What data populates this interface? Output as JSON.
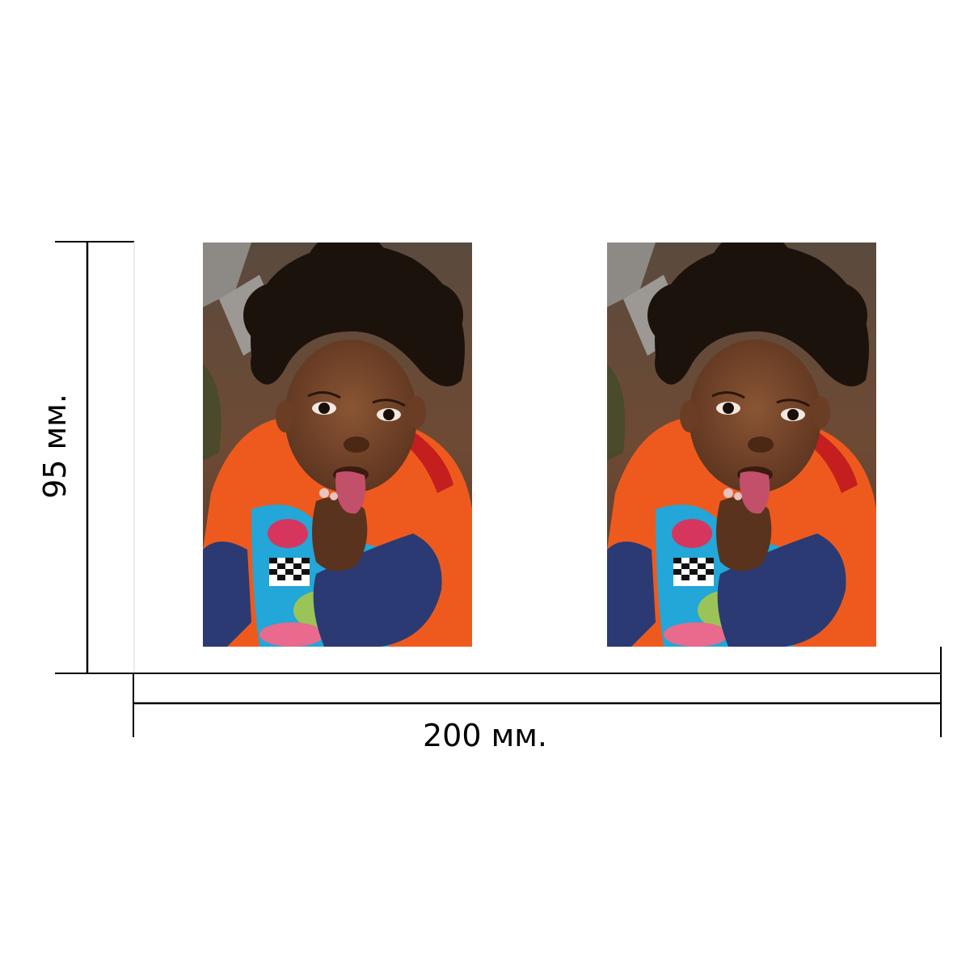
{
  "dimensions": {
    "height_label": "95 мм.",
    "width_label": "200 мм."
  },
  "photos": [
    {
      "subject": "child-portrait"
    },
    {
      "subject": "child-portrait"
    }
  ],
  "colors": {
    "line": "#000000",
    "shirt_orange": "#ee5a1e",
    "sleeve_navy": "#2b3a73",
    "print_cyan": "#23a6d8",
    "hair": "#1c120c",
    "skin": "#6b3f27",
    "tongue": "#c2506b"
  }
}
